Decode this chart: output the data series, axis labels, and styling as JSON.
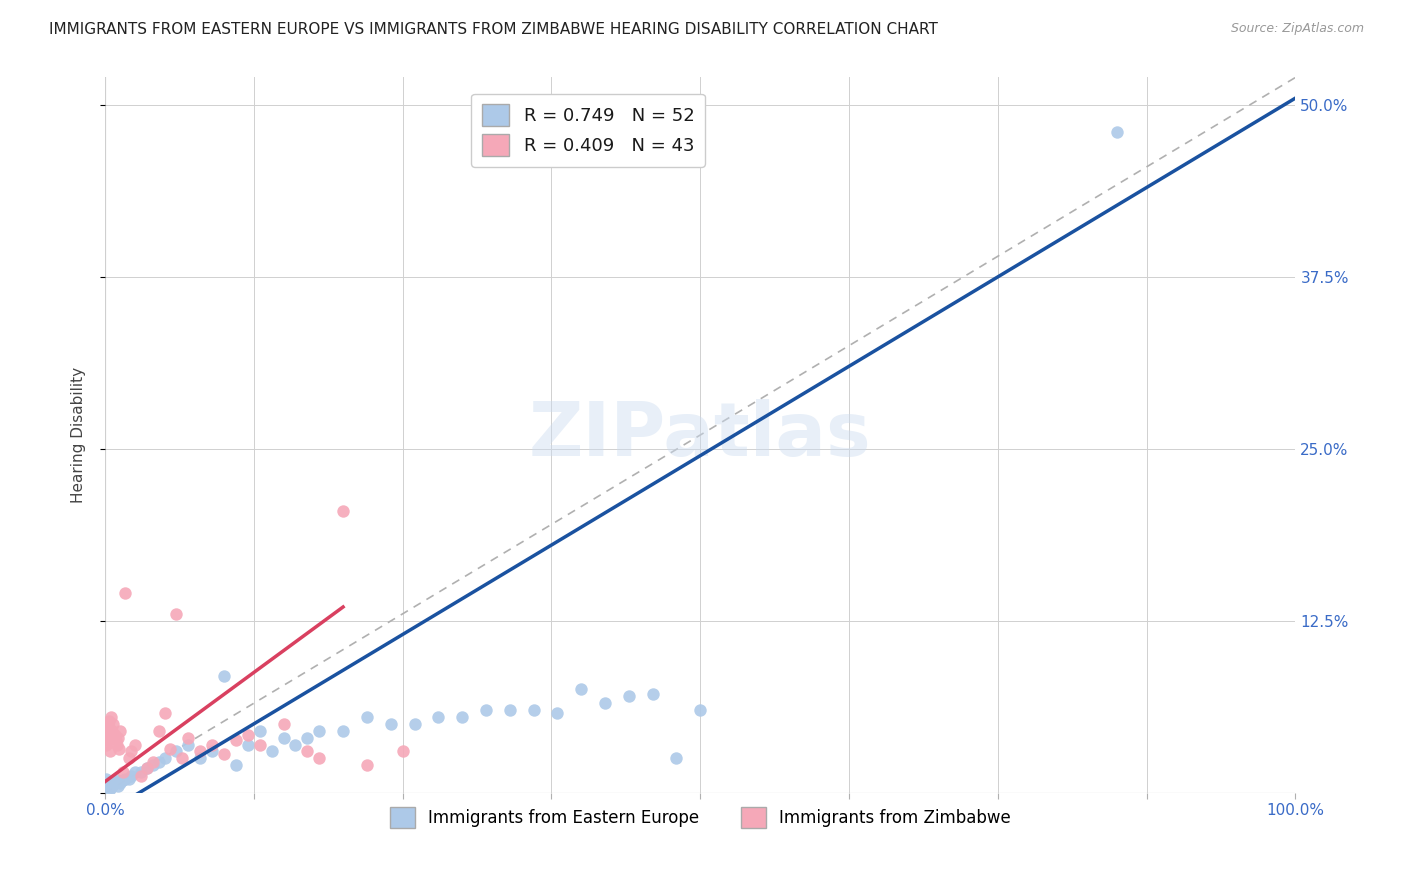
{
  "title": "IMMIGRANTS FROM EASTERN EUROPE VS IMMIGRANTS FROM ZIMBABWE HEARING DISABILITY CORRELATION CHART",
  "source": "Source: ZipAtlas.com",
  "ylabel": "Hearing Disability",
  "xlim": [
    0,
    100
  ],
  "ylim": [
    0,
    52
  ],
  "xticks": [
    0,
    12.5,
    25,
    37.5,
    50,
    62.5,
    75,
    87.5,
    100
  ],
  "yticks": [
    0,
    12.5,
    25,
    37.5,
    50
  ],
  "xtick_labels": [
    "0.0%",
    "",
    "",
    "",
    "",
    "",
    "",
    "",
    "100.0%"
  ],
  "ytick_labels": [
    "",
    "12.5%",
    "25.0%",
    "37.5%",
    "50.0%"
  ],
  "watermark": "ZIPatlas",
  "series_blue": {
    "label": "Immigrants from Eastern Europe",
    "R": 0.749,
    "N": 52,
    "color": "#adc9e8",
    "line_color": "#1a52a0",
    "markersize": 80,
    "x": [
      0.1,
      0.2,
      0.3,
      0.4,
      0.5,
      0.6,
      0.7,
      0.8,
      0.9,
      1.0,
      1.1,
      1.3,
      1.5,
      1.7,
      2.0,
      2.2,
      2.5,
      3.0,
      3.5,
      4.0,
      4.5,
      5.0,
      6.0,
      7.0,
      8.0,
      9.0,
      10.0,
      11.0,
      12.0,
      13.0,
      14.0,
      15.0,
      16.0,
      17.0,
      18.0,
      20.0,
      22.0,
      24.0,
      26.0,
      28.0,
      30.0,
      32.0,
      34.0,
      36.0,
      38.0,
      40.0,
      42.0,
      44.0,
      46.0,
      48.0,
      50.0,
      85.0
    ],
    "y": [
      1.0,
      0.5,
      0.8,
      0.3,
      0.4,
      0.5,
      0.6,
      0.7,
      0.8,
      0.9,
      0.5,
      0.7,
      0.9,
      1.0,
      1.0,
      1.2,
      1.5,
      1.5,
      1.8,
      2.0,
      2.2,
      2.5,
      3.0,
      3.5,
      2.5,
      3.0,
      8.5,
      2.0,
      3.5,
      4.5,
      3.0,
      4.0,
      3.5,
      4.0,
      4.5,
      4.5,
      5.5,
      5.0,
      5.0,
      5.5,
      5.5,
      6.0,
      6.0,
      6.0,
      5.8,
      7.5,
      6.5,
      7.0,
      7.2,
      2.5,
      6.0,
      48.0
    ]
  },
  "series_pink": {
    "label": "Immigrants from Zimbabwe",
    "R": 0.409,
    "N": 43,
    "color": "#f5a8b8",
    "line_color": "#d94060",
    "markersize": 80,
    "x": [
      0.05,
      0.1,
      0.15,
      0.2,
      0.25,
      0.3,
      0.35,
      0.4,
      0.5,
      0.6,
      0.7,
      0.8,
      0.9,
      1.0,
      1.1,
      1.2,
      1.3,
      1.5,
      1.7,
      2.0,
      2.2,
      2.5,
      3.0,
      3.5,
      4.0,
      4.5,
      5.0,
      5.5,
      6.0,
      6.5,
      7.0,
      8.0,
      9.0,
      10.0,
      11.0,
      12.0,
      13.0,
      15.0,
      17.0,
      18.0,
      20.0,
      22.0,
      25.0
    ],
    "y": [
      3.5,
      4.0,
      3.8,
      4.5,
      5.0,
      4.8,
      5.2,
      3.0,
      5.5,
      4.5,
      5.0,
      4.2,
      3.8,
      3.5,
      4.0,
      3.2,
      4.5,
      1.5,
      14.5,
      2.5,
      3.0,
      3.5,
      1.2,
      1.8,
      2.2,
      4.5,
      5.8,
      3.2,
      13.0,
      2.5,
      4.0,
      3.0,
      3.5,
      2.8,
      3.8,
      4.2,
      3.5,
      5.0,
      3.0,
      2.5,
      20.5,
      2.0,
      3.0
    ]
  },
  "blue_line_x": [
    0,
    100
  ],
  "blue_line_y": [
    -1.5,
    50.5
  ],
  "pink_line_x": [
    0,
    20
  ],
  "pink_line_y": [
    0.8,
    13.5
  ],
  "diag_line_x": [
    0,
    100
  ],
  "diag_line_y": [
    0,
    52
  ],
  "title_fontsize": 11,
  "source_fontsize": 9,
  "axis_color": "#3a6bc7",
  "grid_color": "#d0d0d0"
}
